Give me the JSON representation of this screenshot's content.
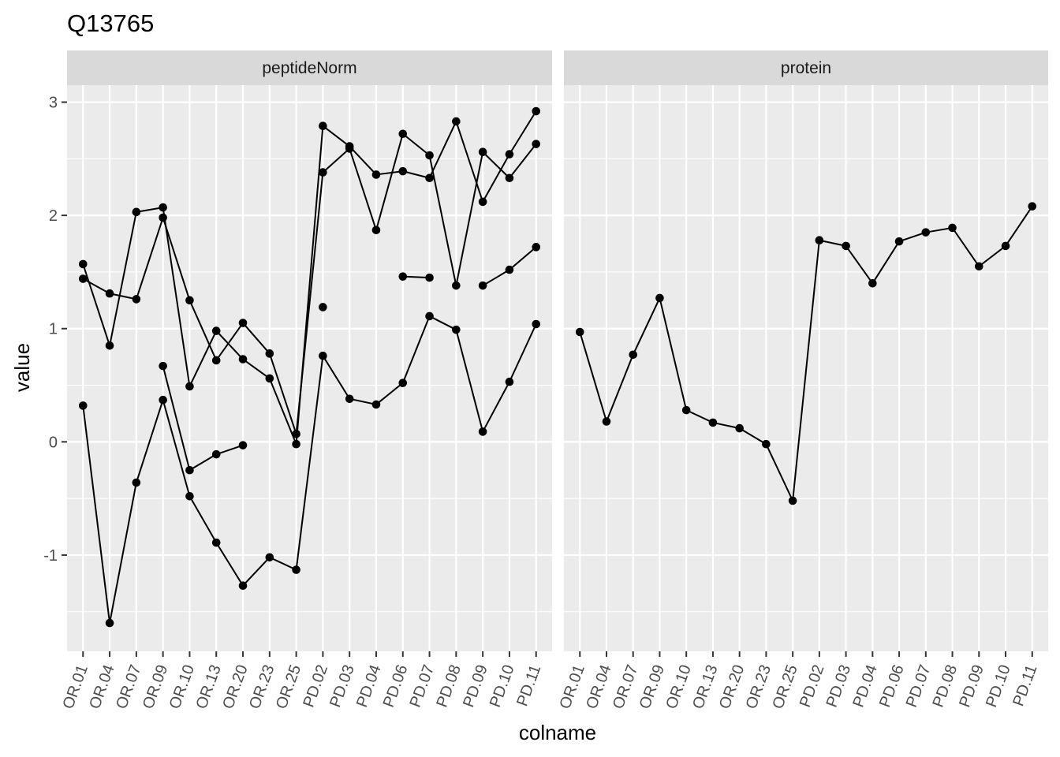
{
  "chart_data": {
    "type": "line",
    "title": "Q13765",
    "xlabel": "colname",
    "ylabel": "value",
    "ylim": [
      -1.85,
      3.15
    ],
    "yticks": [
      -1,
      0,
      1,
      2,
      3
    ],
    "grid": true,
    "legend": "none",
    "categories": [
      "OR.01",
      "OR.04",
      "OR.07",
      "OR.09",
      "OR.10",
      "OR.13",
      "OR.20",
      "OR.23",
      "OR.25",
      "PD.02",
      "PD.03",
      "PD.04",
      "PD.06",
      "PD.07",
      "PD.08",
      "PD.09",
      "PD.10",
      "PD.11"
    ],
    "panels": [
      {
        "strip": "peptideNorm",
        "series": [
          {
            "values": [
              1.57,
              0.85,
              2.03,
              2.07,
              0.49,
              0.98,
              0.73,
              0.56,
              -0.02,
              2.79,
              2.61,
              2.36,
              2.39,
              2.33,
              2.83,
              2.12,
              2.54,
              2.92
            ]
          },
          {
            "values": [
              1.44,
              1.31,
              1.26,
              1.98,
              1.25,
              0.72,
              1.05,
              0.78,
              0.07,
              2.38,
              2.59,
              1.87,
              2.72,
              2.53,
              1.38,
              2.56,
              2.33,
              2.63
            ]
          },
          {
            "values": [
              0.32,
              -1.6,
              -0.36,
              0.37,
              -0.48,
              -0.89,
              -1.27,
              -1.02,
              -1.13,
              0.76,
              0.38,
              0.33,
              0.52,
              1.11,
              0.99,
              0.09,
              0.53,
              1.04
            ]
          },
          {
            "values": [
              null,
              null,
              null,
              0.67,
              -0.25,
              -0.11,
              -0.03,
              null,
              null,
              1.19,
              null,
              null,
              1.46,
              1.45,
              null,
              1.38,
              1.52,
              1.72
            ]
          }
        ]
      },
      {
        "strip": "protein",
        "series": [
          {
            "values": [
              0.97,
              0.18,
              0.77,
              1.27,
              0.28,
              0.17,
              0.12,
              -0.02,
              -0.52,
              1.78,
              1.73,
              1.4,
              1.77,
              1.85,
              1.89,
              1.55,
              1.73,
              2.08
            ]
          }
        ]
      }
    ]
  }
}
